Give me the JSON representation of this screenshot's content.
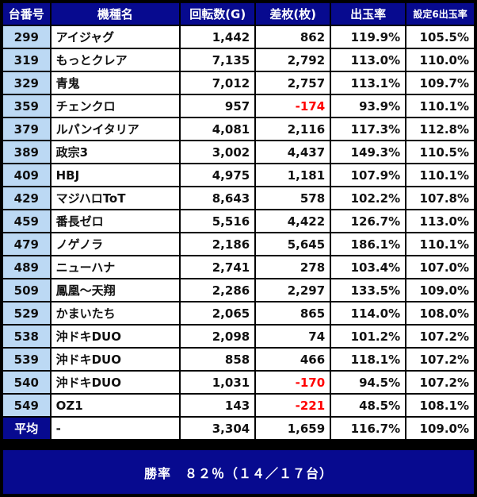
{
  "headers": {
    "machine_no": "台番号",
    "model": "機種名",
    "spins": "回転数(G)",
    "diff": "差枚(枚)",
    "payout": "出玉率",
    "setting6": "設定6出玉率"
  },
  "rows": [
    {
      "id": "299",
      "model": "アイジャグ",
      "spins": "1,442",
      "diff": "862",
      "payout": "119.9%",
      "setting6": "105.5%"
    },
    {
      "id": "319",
      "model": "もっとクレア",
      "spins": "7,135",
      "diff": "2,792",
      "payout": "113.0%",
      "setting6": "110.0%"
    },
    {
      "id": "329",
      "model": "青鬼",
      "spins": "7,012",
      "diff": "2,757",
      "payout": "113.1%",
      "setting6": "109.7%"
    },
    {
      "id": "359",
      "model": "チェンクロ",
      "spins": "957",
      "diff": "-174",
      "payout": "93.9%",
      "setting6": "110.1%"
    },
    {
      "id": "379",
      "model": "ルパンイタリア",
      "spins": "4,081",
      "diff": "2,116",
      "payout": "117.3%",
      "setting6": "112.8%"
    },
    {
      "id": "389",
      "model": "政宗3",
      "spins": "3,002",
      "diff": "4,437",
      "payout": "149.3%",
      "setting6": "110.5%"
    },
    {
      "id": "409",
      "model": "HBJ",
      "spins": "4,975",
      "diff": "1,181",
      "payout": "107.9%",
      "setting6": "110.1%"
    },
    {
      "id": "429",
      "model": "マジハロToT",
      "spins": "8,643",
      "diff": "578",
      "payout": "102.2%",
      "setting6": "107.8%"
    },
    {
      "id": "459",
      "model": "番長ゼロ",
      "spins": "5,516",
      "diff": "4,422",
      "payout": "126.7%",
      "setting6": "113.0%"
    },
    {
      "id": "479",
      "model": "ノゲノラ",
      "spins": "2,186",
      "diff": "5,645",
      "payout": "186.1%",
      "setting6": "110.1%"
    },
    {
      "id": "489",
      "model": "ニューハナ",
      "spins": "2,741",
      "diff": "278",
      "payout": "103.4%",
      "setting6": "107.0%"
    },
    {
      "id": "509",
      "model": "鳳凰～天翔",
      "spins": "2,286",
      "diff": "2,297",
      "payout": "133.5%",
      "setting6": "109.0%"
    },
    {
      "id": "529",
      "model": "かまいたち",
      "spins": "2,065",
      "diff": "865",
      "payout": "114.0%",
      "setting6": "108.0%"
    },
    {
      "id": "538",
      "model": "沖ドキDUO",
      "spins": "2,098",
      "diff": "74",
      "payout": "101.2%",
      "setting6": "107.2%"
    },
    {
      "id": "539",
      "model": "沖ドキDUO",
      "spins": "858",
      "diff": "466",
      "payout": "118.1%",
      "setting6": "107.2%"
    },
    {
      "id": "540",
      "model": "沖ドキDUO",
      "spins": "1,031",
      "diff": "-170",
      "payout": "94.5%",
      "setting6": "107.2%"
    },
    {
      "id": "549",
      "model": "OZ1",
      "spins": "143",
      "diff": "-221",
      "payout": "48.5%",
      "setting6": "108.1%"
    }
  ],
  "average": {
    "label": "平均",
    "model": "-",
    "spins": "3,304",
    "diff": "1,659",
    "payout": "116.7%",
    "setting6": "109.0%"
  },
  "footer": {
    "win_rate": "勝率　８２％（１４／１７台）"
  },
  "colors": {
    "header_bg": "#070a8f",
    "id_bg": "#bcd9f4",
    "negative": "#ff0000"
  }
}
